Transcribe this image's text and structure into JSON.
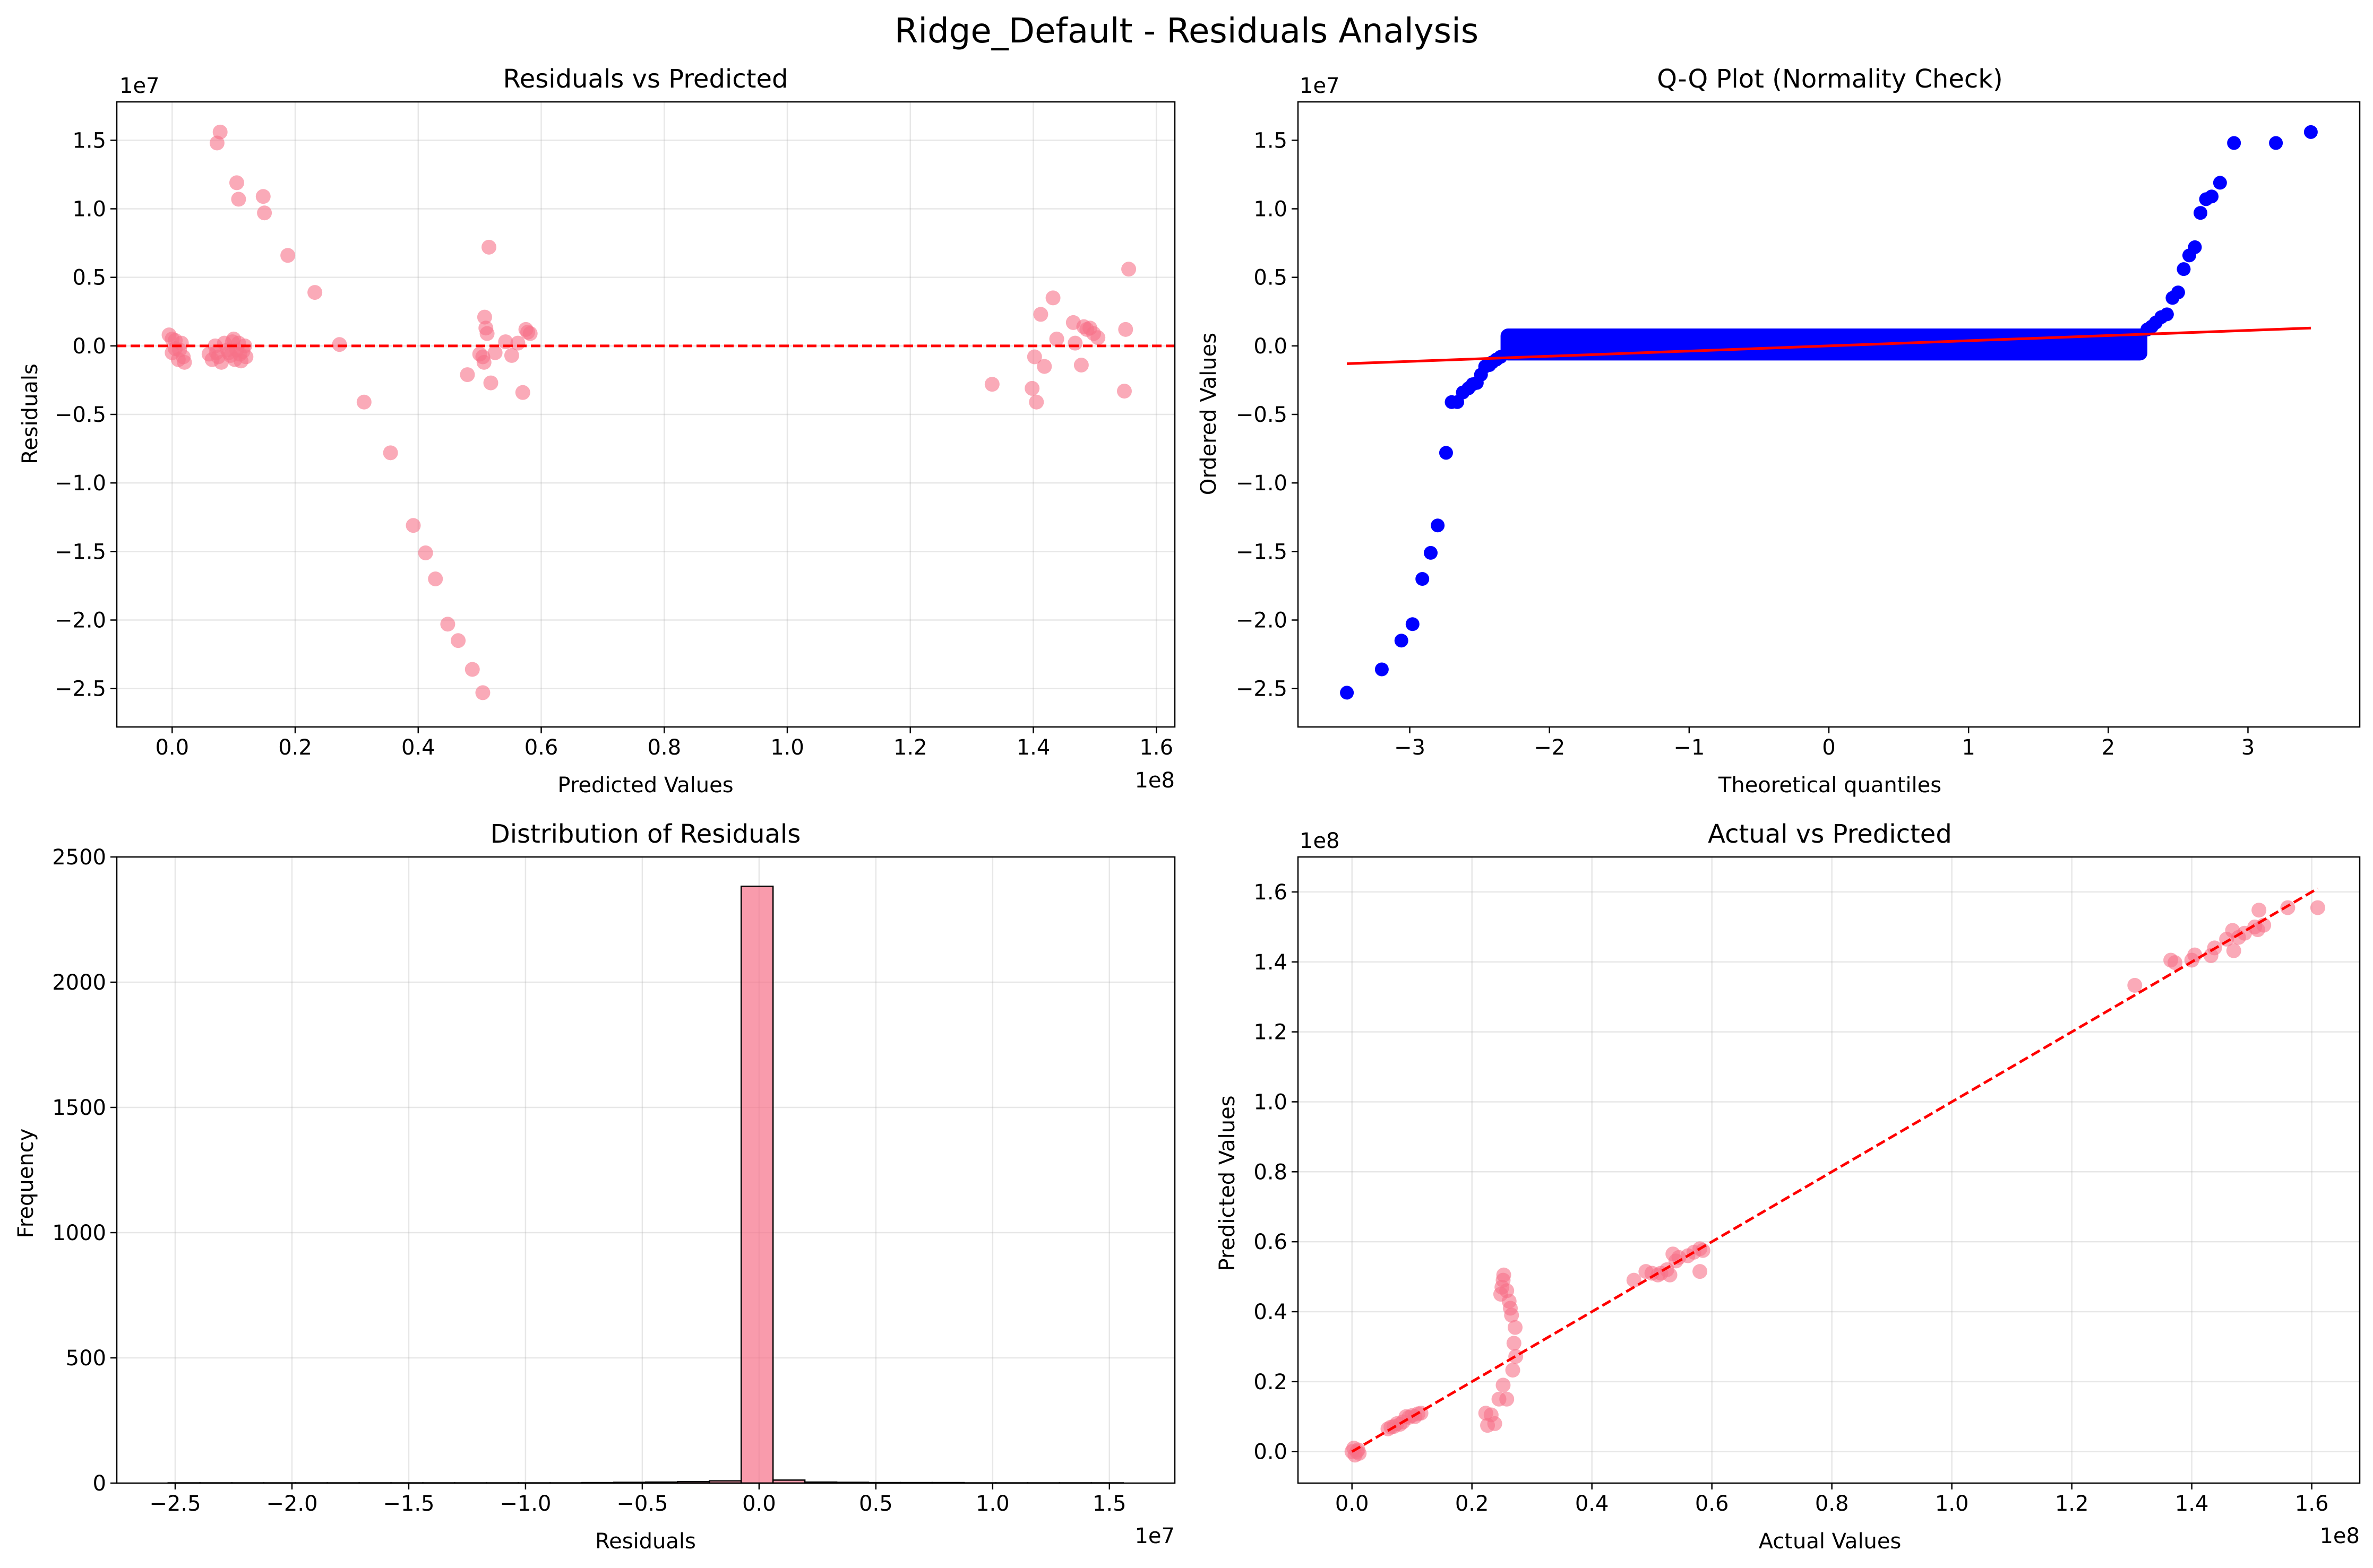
{
  "figure": {
    "suptitle": "Ridge_Default - Residuals Analysis"
  },
  "colors": {
    "point": "#f77189",
    "qq_point": "#0000ff",
    "ref_line": "#ff0000",
    "bar_edge": "#000000"
  },
  "chart_data": [
    {
      "id": "resid-vs-pred",
      "type": "scatter",
      "title": "Residuals vs Predicted",
      "xlabel": "Predicted Values",
      "ylabel": "Residuals",
      "x_offset_text": "1e8",
      "y_offset_text": "1e7",
      "x_scale": 100000000,
      "y_scale": 10000000,
      "xlim": [
        -0.09,
        1.63
      ],
      "ylim": [
        -2.78,
        1.78
      ],
      "xticks": [
        0.0,
        0.2,
        0.4,
        0.6,
        0.8,
        1.0,
        1.2,
        1.4,
        1.6
      ],
      "xtick_labels": [
        "0.0",
        "0.2",
        "0.4",
        "0.6",
        "0.8",
        "1.0",
        "1.2",
        "1.4",
        "1.6"
      ],
      "yticks": [
        -2.5,
        -2.0,
        -1.5,
        -1.0,
        -0.5,
        0.0,
        0.5,
        1.0,
        1.5
      ],
      "ytick_labels": [
        "−2.5",
        "−2.0",
        "−1.5",
        "−1.0",
        "−0.5",
        "0.0",
        "0.5",
        "1.0",
        "1.5"
      ],
      "grid": true,
      "reference_line": {
        "type": "horizontal",
        "y": 0
      },
      "points": [
        [
          -0.005,
          0.08
        ],
        [
          0.0,
          0.05
        ],
        [
          0.005,
          -0.02
        ],
        [
          0.01,
          -0.1
        ],
        [
          0.0,
          -0.05
        ],
        [
          0.015,
          0.02
        ],
        [
          0.02,
          -0.12
        ],
        [
          0.005,
          0.04
        ],
        [
          0.012,
          -0.03
        ],
        [
          0.018,
          -0.08
        ],
        [
          0.06,
          -0.06
        ],
        [
          0.065,
          -0.1
        ],
        [
          0.07,
          0.0
        ],
        [
          0.072,
          -0.05
        ],
        [
          0.075,
          -0.08
        ],
        [
          0.08,
          -0.12
        ],
        [
          0.085,
          0.02
        ],
        [
          0.09,
          -0.03
        ],
        [
          0.095,
          -0.07
        ],
        [
          0.1,
          0.05
        ],
        [
          0.102,
          -0.1
        ],
        [
          0.105,
          -0.03
        ],
        [
          0.108,
          0.02
        ],
        [
          0.11,
          -0.06
        ],
        [
          0.112,
          -0.11
        ],
        [
          0.115,
          -0.04
        ],
        [
          0.118,
          0.0
        ],
        [
          0.12,
          -0.08
        ],
        [
          0.098,
          0.03
        ],
        [
          0.092,
          -0.05
        ],
        [
          0.073,
          1.48
        ],
        [
          0.078,
          1.56
        ],
        [
          0.105,
          1.19
        ],
        [
          0.108,
          1.07
        ],
        [
          0.148,
          1.09
        ],
        [
          0.15,
          0.97
        ],
        [
          0.188,
          0.66
        ],
        [
          0.232,
          0.39
        ],
        [
          0.272,
          0.01
        ],
        [
          0.312,
          -0.41
        ],
        [
          0.355,
          -0.78
        ],
        [
          0.392,
          -1.31
        ],
        [
          0.412,
          -1.51
        ],
        [
          0.428,
          -1.7
        ],
        [
          0.448,
          -2.03
        ],
        [
          0.465,
          -2.15
        ],
        [
          0.488,
          -2.36
        ],
        [
          0.505,
          -2.53
        ],
        [
          0.48,
          -0.21
        ],
        [
          0.505,
          -0.08
        ],
        [
          0.507,
          -0.12
        ],
        [
          0.508,
          0.21
        ],
        [
          0.51,
          0.13
        ],
        [
          0.512,
          0.09
        ],
        [
          0.515,
          0.72
        ],
        [
          0.518,
          -0.27
        ],
        [
          0.525,
          -0.05
        ],
        [
          0.542,
          0.03
        ],
        [
          0.552,
          -0.07
        ],
        [
          0.562,
          0.02
        ],
        [
          0.57,
          -0.34
        ],
        [
          0.575,
          0.12
        ],
        [
          0.578,
          0.1
        ],
        [
          0.582,
          0.09
        ],
        [
          0.5,
          -0.06
        ],
        [
          1.333,
          -0.28
        ],
        [
          1.398,
          -0.31
        ],
        [
          1.402,
          -0.08
        ],
        [
          1.405,
          -0.41
        ],
        [
          1.412,
          0.23
        ],
        [
          1.418,
          -0.15
        ],
        [
          1.432,
          0.35
        ],
        [
          1.438,
          0.05
        ],
        [
          1.465,
          0.17
        ],
        [
          1.468,
          0.02
        ],
        [
          1.478,
          -0.14
        ],
        [
          1.482,
          0.14
        ],
        [
          1.487,
          0.12
        ],
        [
          1.492,
          0.13
        ],
        [
          1.498,
          0.09
        ],
        [
          1.505,
          0.06
        ],
        [
          1.548,
          -0.33
        ],
        [
          1.55,
          0.12
        ],
        [
          1.555,
          0.56
        ]
      ]
    },
    {
      "id": "qq-plot",
      "type": "scatter",
      "title": "Q-Q Plot (Normality Check)",
      "xlabel": "Theoretical quantiles",
      "ylabel": "Ordered Values",
      "y_offset_text": "1e7",
      "y_scale": 10000000,
      "xlim": [
        -3.8,
        3.8
      ],
      "ylim": [
        -2.78,
        1.78
      ],
      "xticks": [
        -3,
        -2,
        -1,
        0,
        1,
        2,
        3
      ],
      "xtick_labels": [
        "−3",
        "−2",
        "−1",
        "0",
        "1",
        "2",
        "3"
      ],
      "yticks": [
        -2.5,
        -2.0,
        -1.5,
        -1.0,
        -0.5,
        0.0,
        0.5,
        1.0,
        1.5
      ],
      "ytick_labels": [
        "−2.5",
        "−2.0",
        "−1.5",
        "−1.0",
        "−0.5",
        "0.0",
        "0.5",
        "1.0",
        "1.5"
      ],
      "grid": false,
      "fit_line": {
        "x": [
          -3.45,
          3.45
        ],
        "y": [
          -0.13,
          0.13
        ]
      },
      "points": [
        [
          -3.45,
          -2.53
        ],
        [
          -3.2,
          -2.36
        ],
        [
          -3.06,
          -2.15
        ],
        [
          -2.98,
          -2.03
        ],
        [
          -2.91,
          -1.7
        ],
        [
          -2.85,
          -1.51
        ],
        [
          -2.8,
          -1.31
        ],
        [
          -2.74,
          -0.78
        ],
        [
          -2.7,
          -0.41
        ],
        [
          -2.66,
          -0.41
        ],
        [
          -2.62,
          -0.34
        ],
        [
          -2.58,
          -0.31
        ],
        [
          -2.55,
          -0.28
        ],
        [
          -2.52,
          -0.27
        ],
        [
          -2.49,
          -0.21
        ],
        [
          -2.46,
          -0.15
        ],
        [
          -2.43,
          -0.14
        ],
        [
          -2.41,
          -0.12
        ],
        [
          -2.38,
          -0.1
        ],
        [
          -2.35,
          -0.08
        ],
        [
          2.28,
          0.12
        ],
        [
          2.31,
          0.14
        ],
        [
          2.34,
          0.17
        ],
        [
          2.38,
          0.21
        ],
        [
          2.42,
          0.23
        ],
        [
          2.46,
          0.35
        ],
        [
          2.5,
          0.39
        ],
        [
          2.54,
          0.56
        ],
        [
          2.58,
          0.66
        ],
        [
          2.62,
          0.72
        ],
        [
          2.66,
          0.97
        ],
        [
          2.7,
          1.07
        ],
        [
          2.74,
          1.09
        ],
        [
          2.8,
          1.19
        ],
        [
          2.9,
          1.48
        ],
        [
          3.2,
          1.48
        ],
        [
          3.45,
          1.56
        ]
      ],
      "dense_band": {
        "x": [
          -2.35,
          2.28
        ],
        "y": [
          -0.06,
          0.08
        ]
      }
    },
    {
      "id": "resid-hist",
      "type": "bar",
      "title": "Distribution of Residuals",
      "xlabel": "Residuals",
      "ylabel": "Frequency",
      "x_offset_text": "1e7",
      "x_scale": 10000000,
      "xlim": [
        -2.75,
        1.78
      ],
      "ylim": [
        0,
        2500
      ],
      "xticks": [
        -2.5,
        -2.0,
        -1.5,
        -1.0,
        -0.5,
        0.0,
        0.5,
        1.0,
        1.5
      ],
      "xtick_labels": [
        "−2.5",
        "−2.0",
        "−1.5",
        "−1.0",
        "−0.5",
        "0.0",
        "0.5",
        "1.0",
        "1.5"
      ],
      "yticks": [
        0,
        500,
        1000,
        1500,
        2000,
        2500
      ],
      "ytick_labels": [
        "0",
        "500",
        "1000",
        "1500",
        "2000",
        "2500"
      ],
      "grid": true,
      "bin_start": -2.53,
      "bin_width": 0.1363,
      "counts": [
        1,
        1,
        1,
        1,
        1,
        1,
        1,
        1,
        1,
        1,
        1,
        1,
        1,
        2,
        3,
        4,
        6,
        9,
        2383,
        12,
        4,
        3,
        2,
        2,
        2,
        1,
        1,
        1,
        1,
        1
      ]
    },
    {
      "id": "actual-vs-pred",
      "type": "scatter",
      "title": "Actual vs Predicted",
      "xlabel": "Actual Values",
      "ylabel": "Predicted Values",
      "x_offset_text": "1e8",
      "y_offset_text": "1e8",
      "x_scale": 100000000,
      "y_scale": 100000000,
      "xlim": [
        -0.09,
        1.68
      ],
      "ylim": [
        -0.09,
        1.7
      ],
      "xticks": [
        0.0,
        0.2,
        0.4,
        0.6,
        0.8,
        1.0,
        1.2,
        1.4,
        1.6
      ],
      "xtick_labels": [
        "0.0",
        "0.2",
        "0.4",
        "0.6",
        "0.8",
        "1.0",
        "1.2",
        "1.4",
        "1.6"
      ],
      "yticks": [
        0.0,
        0.2,
        0.4,
        0.6,
        0.8,
        1.0,
        1.2,
        1.4,
        1.6
      ],
      "ytick_labels": [
        "0.0",
        "0.2",
        "0.4",
        "0.6",
        "0.8",
        "1.0",
        "1.2",
        "1.4",
        "1.6"
      ],
      "grid": true,
      "reference_line": {
        "type": "diagonal",
        "x": [
          0.0,
          1.61
        ],
        "y": [
          0.0,
          1.61
        ]
      },
      "points": [
        [
          0.0,
          0.0
        ],
        [
          0.005,
          -0.01
        ],
        [
          0.01,
          0.005
        ],
        [
          0.003,
          0.01
        ],
        [
          0.012,
          -0.005
        ],
        [
          0.008,
          0.0
        ],
        [
          0.06,
          0.065
        ],
        [
          0.065,
          0.07
        ],
        [
          0.07,
          0.072
        ],
        [
          0.075,
          0.08
        ],
        [
          0.08,
          0.078
        ],
        [
          0.085,
          0.085
        ],
        [
          0.09,
          0.1
        ],
        [
          0.095,
          0.098
        ],
        [
          0.1,
          0.103
        ],
        [
          0.105,
          0.1
        ],
        [
          0.11,
          0.108
        ],
        [
          0.115,
          0.11
        ],
        [
          0.223,
          0.11
        ],
        [
          0.226,
          0.075
        ],
        [
          0.232,
          0.105
        ],
        [
          0.238,
          0.08
        ],
        [
          0.245,
          0.15
        ],
        [
          0.252,
          0.19
        ],
        [
          0.258,
          0.15
        ],
        [
          0.248,
          0.45
        ],
        [
          0.25,
          0.47
        ],
        [
          0.252,
          0.49
        ],
        [
          0.253,
          0.505
        ],
        [
          0.258,
          0.46
        ],
        [
          0.262,
          0.43
        ],
        [
          0.264,
          0.41
        ],
        [
          0.266,
          0.39
        ],
        [
          0.27,
          0.31
        ],
        [
          0.272,
          0.355
        ],
        [
          0.268,
          0.233
        ],
        [
          0.273,
          0.272
        ],
        [
          0.47,
          0.49
        ],
        [
          0.49,
          0.515
        ],
        [
          0.5,
          0.51
        ],
        [
          0.51,
          0.505
        ],
        [
          0.515,
          0.51
        ],
        [
          0.525,
          0.52
        ],
        [
          0.53,
          0.505
        ],
        [
          0.535,
          0.565
        ],
        [
          0.54,
          0.545
        ],
        [
          0.545,
          0.555
        ],
        [
          0.56,
          0.56
        ],
        [
          0.57,
          0.57
        ],
        [
          0.58,
          0.58
        ],
        [
          0.585,
          0.575
        ],
        [
          0.58,
          0.515
        ],
        [
          1.305,
          1.333
        ],
        [
          1.365,
          1.405
        ],
        [
          1.372,
          1.398
        ],
        [
          1.4,
          1.405
        ],
        [
          1.405,
          1.42
        ],
        [
          1.432,
          1.418
        ],
        [
          1.438,
          1.44
        ],
        [
          1.458,
          1.465
        ],
        [
          1.468,
          1.49
        ],
        [
          1.47,
          1.432
        ],
        [
          1.478,
          1.47
        ],
        [
          1.488,
          1.482
        ],
        [
          1.505,
          1.5
        ],
        [
          1.51,
          1.492
        ],
        [
          1.512,
          1.548
        ],
        [
          1.52,
          1.505
        ],
        [
          1.56,
          1.555
        ],
        [
          1.61,
          1.555
        ]
      ]
    }
  ]
}
